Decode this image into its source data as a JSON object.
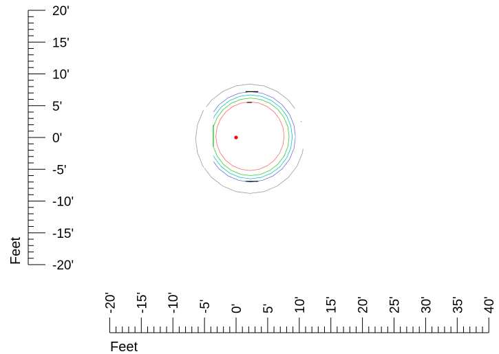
{
  "chart_data": {
    "type": "diagram",
    "units": "Feet",
    "x_axis": {
      "label": "Feet",
      "ticks": [
        "-20'",
        "-15'",
        "-10'",
        "-5'",
        "0'",
        "5'",
        "10'",
        "15'",
        "20'",
        "25'",
        "30'",
        "35'",
        "40'"
      ],
      "values": [
        -20,
        -15,
        -10,
        -5,
        0,
        5,
        10,
        15,
        20,
        25,
        30,
        35,
        40
      ]
    },
    "y_axis": {
      "label": "Feet",
      "ticks": [
        "20'",
        "15'",
        "10'",
        "5'",
        "0'",
        "-5'",
        "-10'",
        "-15'",
        "-20'"
      ],
      "values": [
        20,
        15,
        10,
        5,
        0,
        -5,
        -10,
        -15,
        -20
      ]
    },
    "contours": [
      {
        "color": "#999999",
        "center": [
          2.2,
          -0.2
        ],
        "radius": 8.6
      },
      {
        "color": "#7070d8",
        "center": [
          2.3,
          0.1
        ],
        "radius": 7.1
      },
      {
        "color": "#00c8c8",
        "center": [
          2.3,
          0.1
        ],
        "radius": 6.6
      },
      {
        "color": "#33cc33",
        "center": [
          2.3,
          0.1
        ],
        "radius": 6.1
      },
      {
        "color": "#ff6666",
        "center": [
          2.2,
          0.2
        ],
        "radius": 5.4
      }
    ],
    "marker": {
      "color": "#ff0000",
      "x": 0,
      "y": 0
    }
  }
}
